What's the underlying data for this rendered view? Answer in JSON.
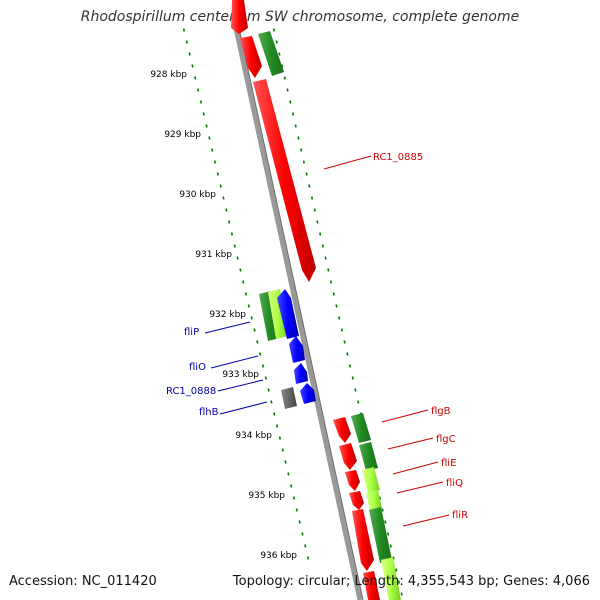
{
  "title": "Rhodospirillum centenum SW chromosome, complete genome",
  "footer": {
    "accession": "Accession: NC_011420",
    "stats": "Topology: circular; Length: 4,355,543 bp; Genes: 4,066"
  },
  "colors": {
    "forward_gene": "#ff0000",
    "reverse_gene": "#0000ff",
    "cds_bar": "#2e8b2e",
    "cds_bar_light": "#aaff44",
    "unknown_gene": "#666666",
    "backbone": "#999999",
    "tick": "#007700",
    "label_forward": "#cc0000",
    "label_reverse": "#0000aa"
  },
  "ticks": [
    "928 kbp",
    "929 kbp",
    "930 kbp",
    "931 kbp",
    "932 kbp",
    "933 kbp",
    "934 kbp",
    "935 kbp",
    "936 kbp"
  ],
  "gene_labels": [
    {
      "text": "RC1_0885",
      "strand": "forward"
    },
    {
      "text": "fliP",
      "strand": "reverse"
    },
    {
      "text": "fliO",
      "strand": "reverse"
    },
    {
      "text": "RC1_0888",
      "strand": "reverse"
    },
    {
      "text": "flhB",
      "strand": "reverse"
    },
    {
      "text": "flgB",
      "strand": "forward"
    },
    {
      "text": "flgC",
      "strand": "forward"
    },
    {
      "text": "fliE",
      "strand": "forward"
    },
    {
      "text": "fliQ",
      "strand": "forward"
    },
    {
      "text": "fliR",
      "strand": "forward"
    }
  ]
}
